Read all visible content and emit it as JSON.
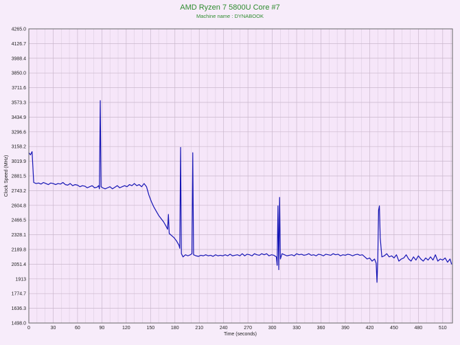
{
  "chart_data": {
    "type": "line",
    "title": "AMD Ryzen 7 5800U Core #7",
    "subtitle": "Machine name : DYNABOOK",
    "x_label": "Time (seconds)",
    "y_label": "Clock Speed (MHz)",
    "color": "#1414b4",
    "grid": true,
    "xlim": [
      0,
      522
    ],
    "xticks": [
      0,
      30,
      60,
      90,
      120,
      150,
      180,
      210,
      240,
      270,
      300,
      330,
      360,
      390,
      420,
      450,
      480,
      510
    ],
    "ylim": [
      1498,
      4265
    ],
    "yticks": [
      {
        "value": 1498,
        "label": "1498.0"
      },
      1636.3,
      1774.7,
      1913,
      2051.4,
      2189.8,
      2328.1,
      2466.5,
      2604.8,
      2743.2,
      2881.5,
      3019.9,
      3158.2,
      3296.6,
      3434.9,
      3573.3,
      3711.6,
      {
        "value": 3850,
        "label": "3850.0"
      },
      3988.4,
      4126.7,
      {
        "value": 4265,
        "label": "4265.0"
      }
    ],
    "x": [
      0,
      2,
      4,
      6,
      9,
      12,
      15,
      18,
      21,
      24,
      27,
      30,
      33,
      36,
      39,
      42,
      45,
      48,
      51,
      54,
      57,
      60,
      63,
      66,
      69,
      72,
      75,
      78,
      81,
      84,
      86,
      87,
      88,
      89,
      91,
      94,
      97,
      100,
      103,
      106,
      109,
      112,
      115,
      118,
      121,
      124,
      127,
      130,
      133,
      136,
      139,
      142,
      145,
      148,
      151,
      154,
      157,
      160,
      163,
      166,
      169,
      171,
      172,
      173,
      176,
      179,
      182,
      185,
      186,
      187,
      188,
      190,
      193,
      196,
      199,
      201,
      202,
      203,
      206,
      209,
      212,
      215,
      218,
      221,
      224,
      227,
      230,
      233,
      236,
      239,
      242,
      245,
      248,
      251,
      254,
      257,
      260,
      263,
      266,
      269,
      272,
      275,
      278,
      281,
      284,
      287,
      290,
      293,
      296,
      299,
      302,
      305,
      306,
      307,
      308,
      309,
      310,
      312,
      315,
      318,
      321,
      324,
      327,
      330,
      333,
      336,
      339,
      342,
      345,
      348,
      351,
      354,
      357,
      360,
      363,
      366,
      369,
      372,
      375,
      378,
      381,
      384,
      387,
      390,
      393,
      396,
      399,
      402,
      405,
      408,
      411,
      414,
      417,
      420,
      423,
      426,
      428,
      429,
      430,
      431,
      432,
      433,
      435,
      438,
      441,
      444,
      447,
      450,
      453,
      456,
      459,
      462,
      465,
      468,
      471,
      474,
      477,
      480,
      483,
      486,
      489,
      492,
      495,
      498,
      501,
      504,
      507,
      510,
      513,
      516,
      519,
      521
    ],
    "values": [
      3100,
      3080,
      3110,
      2820,
      2810,
      2815,
      2805,
      2820,
      2810,
      2800,
      2815,
      2810,
      2800,
      2810,
      2805,
      2820,
      2800,
      2795,
      2810,
      2790,
      2800,
      2795,
      2780,
      2790,
      2785,
      2770,
      2780,
      2790,
      2770,
      2775,
      2790,
      2760,
      3590,
      2780,
      2770,
      2760,
      2770,
      2780,
      2760,
      2775,
      2790,
      2770,
      2780,
      2790,
      2780,
      2800,
      2790,
      2810,
      2790,
      2800,
      2780,
      2810,
      2780,
      2700,
      2640,
      2590,
      2550,
      2510,
      2480,
      2450,
      2410,
      2380,
      2520,
      2340,
      2320,
      2300,
      2270,
      2230,
      2200,
      3150,
      2150,
      2120,
      2140,
      2130,
      2140,
      2150,
      3100,
      2140,
      2130,
      2125,
      2135,
      2130,
      2140,
      2130,
      2135,
      2125,
      2140,
      2130,
      2135,
      2130,
      2140,
      2130,
      2145,
      2130,
      2135,
      2140,
      2130,
      2150,
      2130,
      2145,
      2140,
      2130,
      2150,
      2140,
      2135,
      2150,
      2140,
      2150,
      2130,
      2140,
      2135,
      2120,
      2040,
      2600,
      2000,
      2680,
      2100,
      2150,
      2140,
      2130,
      2135,
      2140,
      2130,
      2150,
      2140,
      2145,
      2135,
      2140,
      2150,
      2135,
      2140,
      2130,
      2145,
      2140,
      2130,
      2145,
      2140,
      2135,
      2150,
      2140,
      2145,
      2130,
      2140,
      2135,
      2145,
      2140,
      2130,
      2140,
      2145,
      2135,
      2140,
      2120,
      2100,
      2110,
      2080,
      2100,
      2060,
      1880,
      2100,
      2560,
      2600,
      2300,
      2120,
      2130,
      2150,
      2120,
      2130,
      2110,
      2140,
      2080,
      2100,
      2110,
      2140,
      2100,
      2080,
      2120,
      2090,
      2130,
      2100,
      2080,
      2110,
      2090,
      2120,
      2090,
      2140,
      2080,
      2100,
      2090,
      2110,
      2070,
      2100,
      2050
    ]
  }
}
